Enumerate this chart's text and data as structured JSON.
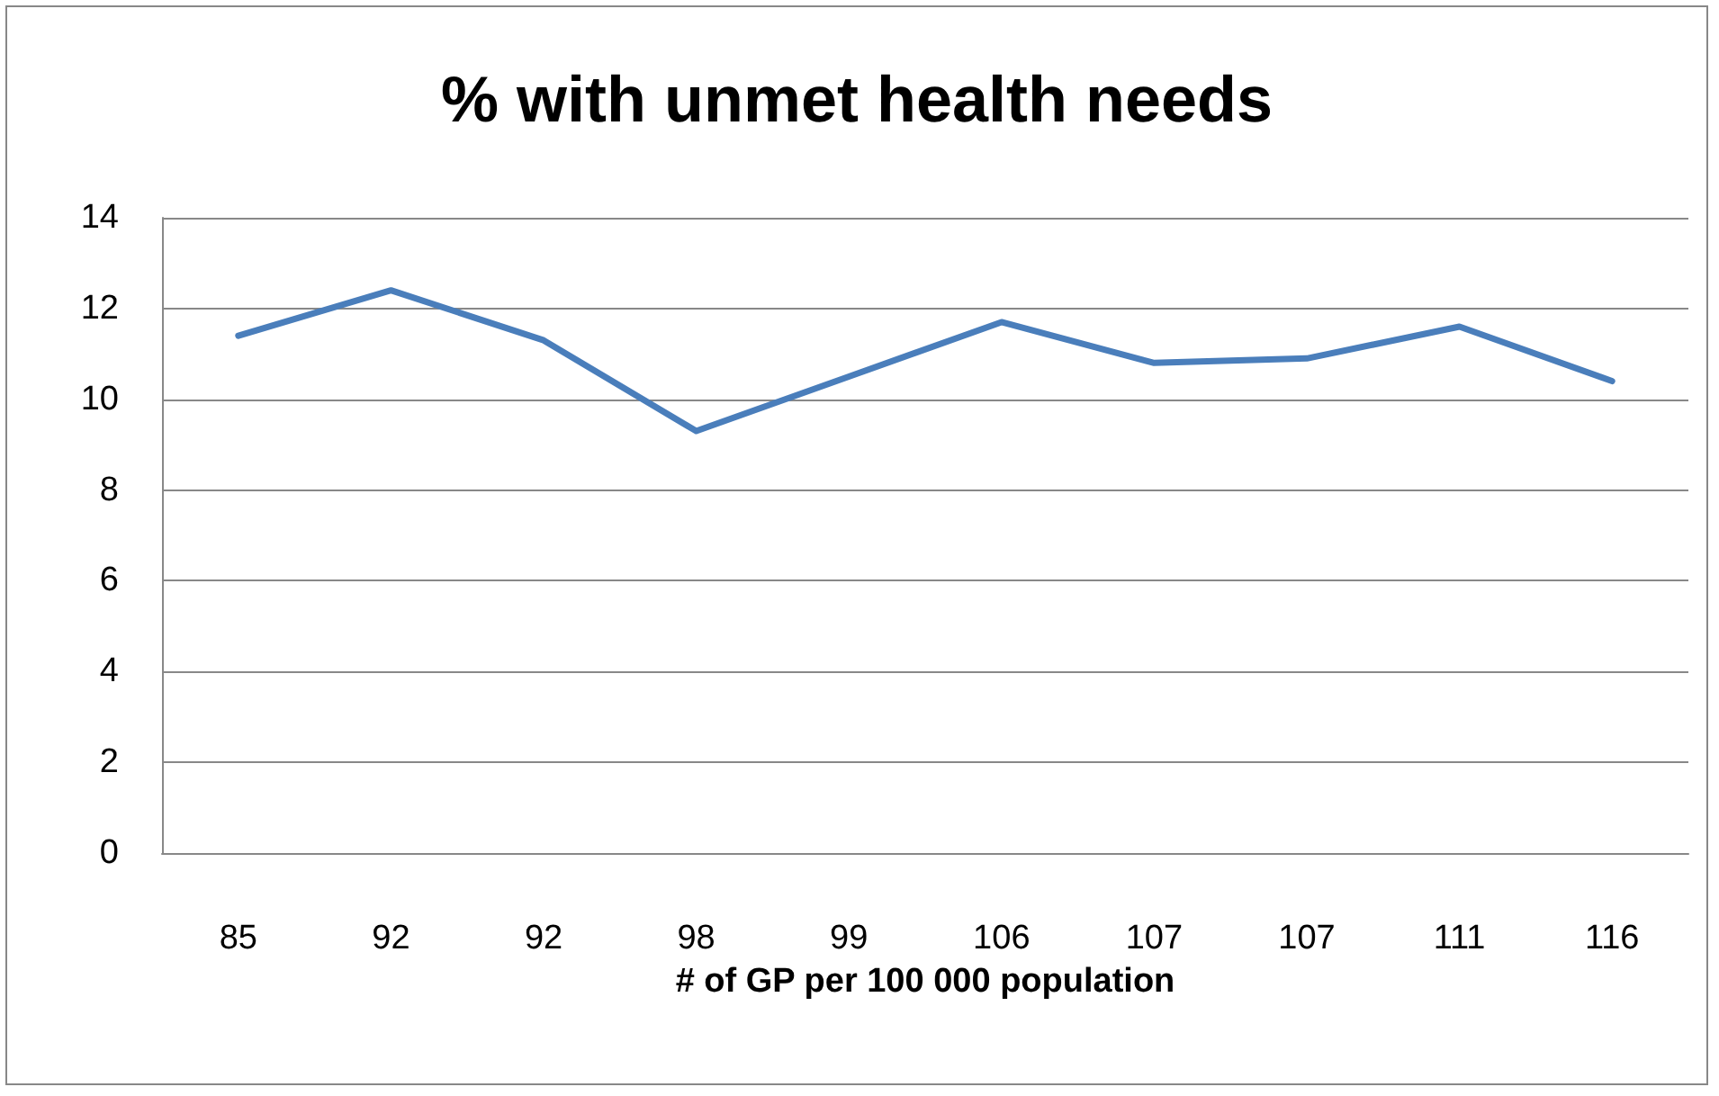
{
  "chart_data": {
    "type": "line",
    "title": "% with unmet health needs",
    "xlabel": "# of GP per 100 000 population",
    "categories": [
      "85",
      "92",
      "92",
      "98",
      "99",
      "106",
      "107",
      "107",
      "111",
      "116"
    ],
    "series": [
      {
        "color": "#4a7ebb",
        "values": [
          11.4,
          12.4,
          11.3,
          9.3,
          10.5,
          11.7,
          10.8,
          10.9,
          11.6,
          10.4
        ]
      }
    ],
    "ylim": [
      0,
      14
    ],
    "yticks": [
      0,
      2,
      4,
      6,
      8,
      10,
      12,
      14
    ],
    "grid": "y",
    "marker": "none",
    "line_style": "solid"
  }
}
